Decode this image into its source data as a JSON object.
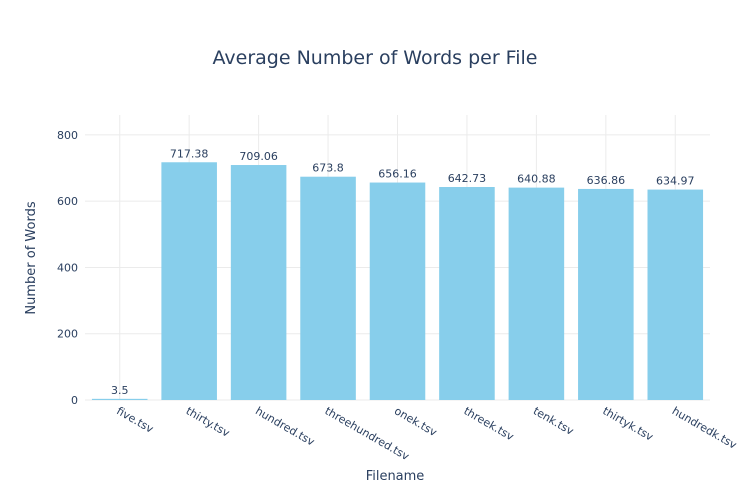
{
  "chart_data": {
    "type": "bar",
    "title": "Average Number of Words per File",
    "xlabel": "Filename",
    "ylabel": "Number of Words",
    "categories": [
      "five.tsv",
      "thirty.tsv",
      "hundred.tsv",
      "threehundred.tsv",
      "onek.tsv",
      "threek.tsv",
      "tenk.tsv",
      "thirtyk.tsv",
      "hundredk.tsv"
    ],
    "values": [
      3.5,
      717.38,
      709.06,
      673.8,
      656.16,
      642.73,
      640.88,
      636.86,
      634.97
    ],
    "value_labels": [
      "3.5",
      "717.38",
      "709.06",
      "673.8",
      "656.16",
      "642.73",
      "640.88",
      "636.86",
      "634.97"
    ],
    "y_ticks": [
      0,
      200,
      400,
      600,
      800
    ],
    "ylim": [
      0,
      860
    ],
    "grid": true,
    "bar_color": "#87ceeb"
  }
}
